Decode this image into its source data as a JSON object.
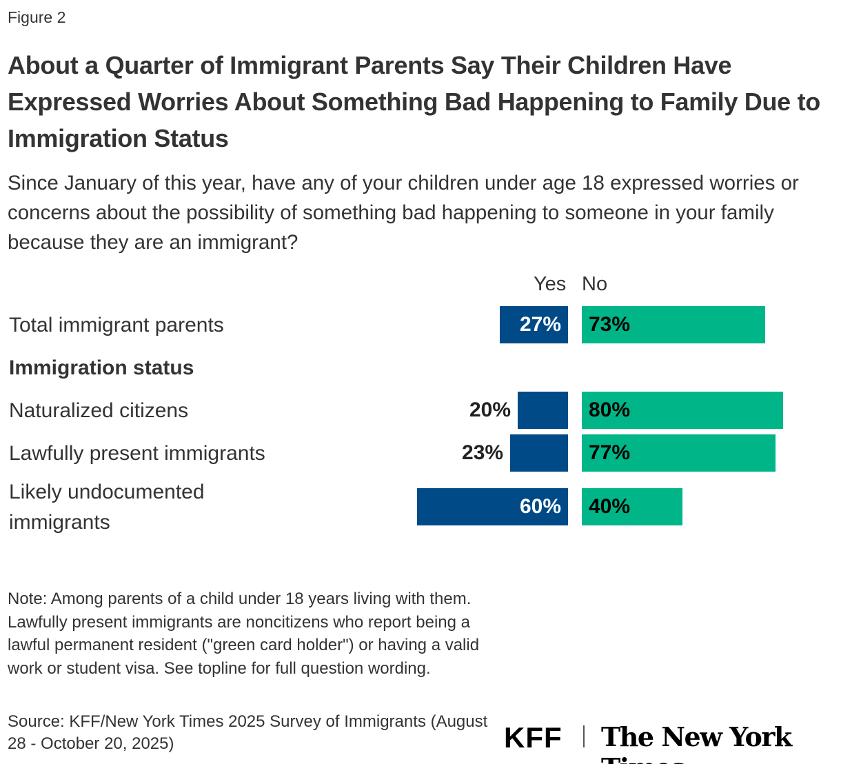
{
  "figure_label": "Figure 2",
  "chart_data": {
    "type": "bar",
    "orientation": "horizontal-diverging-stacked",
    "title": "About a Quarter of Immigrant Parents Say Their Children Have Expressed Worries About Something Bad Happening to Family Due to Immigration Status",
    "subtitle": "Since January of this year, have any of your children under age 18 expressed worries or concerns about the possibility of something bad happening to someone in your family because they are an immigrant?",
    "group_header": "Immigration status",
    "categories": [
      "Total immigrant parents",
      "Naturalized citizens",
      "Lawfully present immigrants",
      "Likely undocumented immigrants"
    ],
    "series": [
      {
        "name": "Yes",
        "values": [
          27,
          20,
          23,
          60
        ],
        "color": "#004a87"
      },
      {
        "name": "No",
        "values": [
          73,
          80,
          77,
          40
        ],
        "color": "#00b588"
      }
    ],
    "unit": "%",
    "xlim": [
      0,
      100
    ]
  },
  "note": "Note: Among parents of a child under 18 years living with them. Lawfully present immigrants are noncitizens who report being a lawful permanent resident (\"green card holder\") or having a valid work or student visa. See topline for full question wording.",
  "source": "Source: KFF/New York Times 2025 Survey of Immigrants (August 28 - October 20, 2025)",
  "logos": {
    "kff": "KFF",
    "nyt": "The New York Times"
  }
}
